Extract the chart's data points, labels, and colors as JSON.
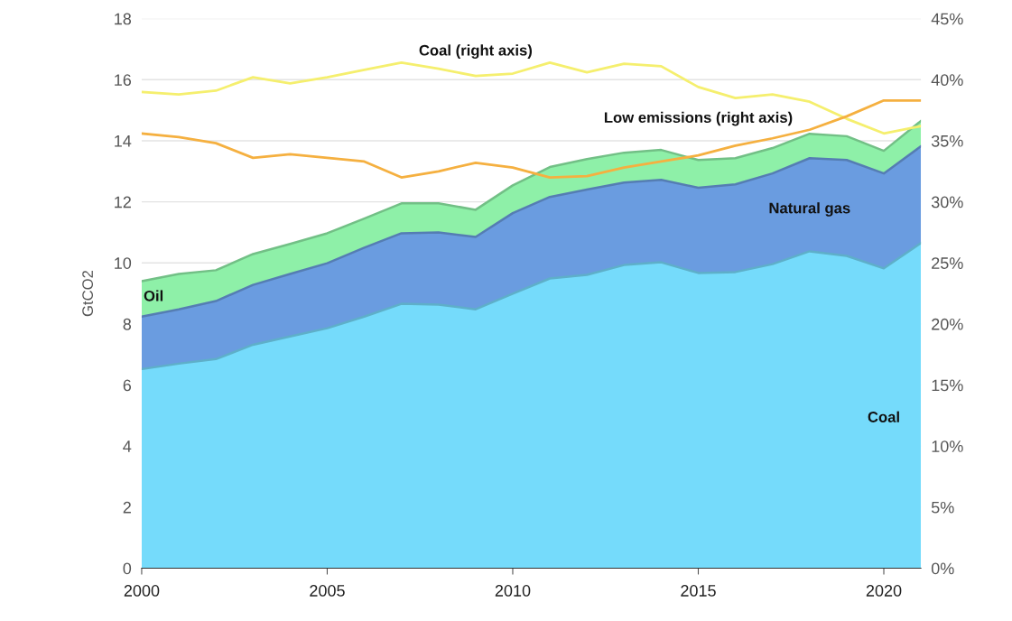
{
  "chart_data": {
    "type": "area",
    "stacked": true,
    "ylabel": "GtCO2",
    "x": [
      2000,
      2001,
      2002,
      2003,
      2004,
      2005,
      2006,
      2007,
      2008,
      2009,
      2010,
      2011,
      2012,
      2013,
      2014,
      2015,
      2016,
      2017,
      2018,
      2019,
      2020,
      2021
    ],
    "series": [
      {
        "name": "Coal",
        "color": "#75dbfb",
        "values": [
          6.52,
          6.7,
          6.85,
          7.32,
          7.59,
          7.86,
          8.24,
          8.66,
          8.63,
          8.48,
          8.99,
          9.49,
          9.61,
          9.93,
          10.02,
          9.67,
          9.7,
          9.96,
          10.38,
          10.23,
          9.82,
          10.65
        ]
      },
      {
        "name": "Natural gas",
        "color": "#6a9ce0",
        "values": [
          1.72,
          1.78,
          1.9,
          1.96,
          2.05,
          2.13,
          2.26,
          2.31,
          2.37,
          2.37,
          2.64,
          2.67,
          2.79,
          2.7,
          2.7,
          2.79,
          2.87,
          2.97,
          3.05,
          3.14,
          3.11,
          3.17
        ]
      },
      {
        "name": "Oil",
        "color": "#8ef0a8",
        "values": [
          1.16,
          1.16,
          1.01,
          1.01,
          0.98,
          0.98,
          0.95,
          0.98,
          0.95,
          0.89,
          0.91,
          0.98,
          1.0,
          0.98,
          0.98,
          0.91,
          0.86,
          0.83,
          0.8,
          0.78,
          0.74,
          0.83
        ]
      },
      {
        "name": "Coal (right axis)",
        "type": "line",
        "axis": "y2",
        "color": "#f5ef6e",
        "values": [
          39.0,
          38.8,
          39.1,
          40.2,
          39.7,
          40.2,
          40.8,
          41.4,
          40.9,
          40.3,
          40.5,
          41.4,
          40.6,
          41.3,
          41.1,
          39.4,
          38.5,
          38.8,
          38.2,
          36.8,
          35.6,
          36.2
        ]
      },
      {
        "name": "Low emissions (right axis)",
        "type": "line",
        "axis": "y2",
        "color": "#f5b040",
        "values": [
          35.6,
          35.3,
          34.8,
          33.6,
          33.9,
          33.6,
          33.3,
          32.0,
          32.5,
          33.2,
          32.8,
          32.0,
          32.1,
          32.8,
          33.3,
          33.8,
          34.6,
          35.2,
          35.9,
          37.0,
          38.3,
          38.3
        ]
      }
    ],
    "xlim": [
      2000,
      2021
    ],
    "xticks": [
      2000,
      2005,
      2010,
      2015,
      2020
    ],
    "ylim": [
      0,
      18
    ],
    "yticks": [
      0,
      2,
      4,
      6,
      8,
      10,
      12,
      14,
      16,
      18
    ],
    "y2lim": [
      0,
      45
    ],
    "y2ticks": [
      {
        "value": 0,
        "label": "0%"
      },
      {
        "value": 5,
        "label": "5%"
      },
      {
        "value": 10,
        "label": "10%"
      },
      {
        "value": 15,
        "label": "15%"
      },
      {
        "value": 20,
        "label": "20%"
      },
      {
        "value": 25,
        "label": "25%"
      },
      {
        "value": 30,
        "label": "30%"
      },
      {
        "value": 35,
        "label": "35%"
      },
      {
        "value": 40,
        "label": "40%"
      },
      {
        "value": 45,
        "label": "45%"
      }
    ],
    "grid": "y",
    "legend": false,
    "marker": "none",
    "line_style": "solid"
  }
}
